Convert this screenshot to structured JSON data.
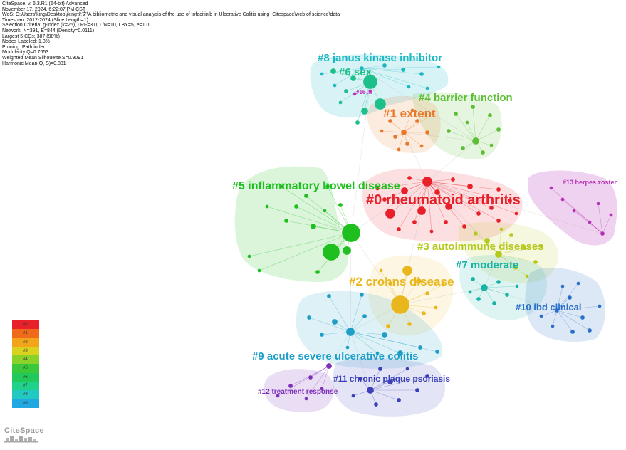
{
  "header_lines": [
    "CiteSpace, v. 6.3.R1 (64-bit) Advanced",
    "November 17, 2024, 6:22:07 PM CST",
    "WoS: C:\\Users\\king\\Desktop\\jking论文\\A bibliometric and visual analysis of the use of tofacitinib in Ulcerative Colitis using  Citespace\\web of science\\data",
    "Timespan: 2012-2024 (Slice Length=1)",
    "Selection Criteria: g-index (k=25), LRF=3.0, L/N=10, LBY=5, e=1.0",
    "Network: N=391, E=844 (Density=0.0111)",
    "Largest 5 CCs: 387 (98%)",
    "Nodes Labeled: 1.0%",
    "Pruning: Pathfinder",
    "Modularity Q=0.7653",
    "Weighted Mean Silhouette S=0.9091",
    "Harmonic Mean(Q, S)=0.831"
  ],
  "clusters": [
    {
      "id": "c0",
      "label": "#0 rheumatoid arthritis",
      "color": "#e8202a"
    },
    {
      "id": "c1",
      "label": "#1 extent",
      "color": "#e8792a"
    },
    {
      "id": "c2",
      "label": "#2 crohns disease",
      "color": "#e9b71d"
    },
    {
      "id": "c3",
      "label": "#3 autoimmune diseases",
      "color": "#b5c91c"
    },
    {
      "id": "c4",
      "label": "#4 barrier function",
      "color": "#5dbe36"
    },
    {
      "id": "c5",
      "label": "#5 inflammatory bowel disease",
      "color": "#1fbf1f"
    },
    {
      "id": "c6",
      "label": "#6 sex",
      "color": "#1dbf8a"
    },
    {
      "id": "c7",
      "label": "#7 moderate",
      "color": "#17b3a6"
    },
    {
      "id": "c8",
      "label": "#8 janus kinase inhibitor",
      "color": "#1ab8c2"
    },
    {
      "id": "c9",
      "label": "#9 acute severe ulcerative colitis",
      "color": "#1f9fc8"
    },
    {
      "id": "c10",
      "label": "#10 ibd clinical",
      "color": "#2a6fc9"
    },
    {
      "id": "c11",
      "label": "#11 chronic plaque psoriasis",
      "color": "#3b3fb8"
    },
    {
      "id": "c12",
      "label": "#12 treatment response",
      "color": "#7c2fb8"
    },
    {
      "id": "c13",
      "label": "#13 herpes zoster",
      "color": "#b530b5"
    },
    {
      "id": "c_small",
      "label": "#16 ...",
      "color": "#c030c0"
    }
  ],
  "legend": {
    "items": [
      {
        "label": "#0",
        "color": "#e8202a"
      },
      {
        "label": "#1",
        "color": "#ef6a1a"
      },
      {
        "label": "#2",
        "color": "#f2a51a"
      },
      {
        "label": "#3",
        "color": "#d9d21f"
      },
      {
        "label": "#4",
        "color": "#8ad12a"
      },
      {
        "label": "#5",
        "color": "#3ac93a"
      },
      {
        "label": "#6",
        "color": "#22c95a"
      },
      {
        "label": "#7",
        "color": "#20d18a"
      },
      {
        "label": "#8",
        "color": "#22c9c0"
      },
      {
        "label": "#9",
        "color": "#22a8e0"
      }
    ]
  },
  "logo": {
    "text": "CiteSpace"
  }
}
